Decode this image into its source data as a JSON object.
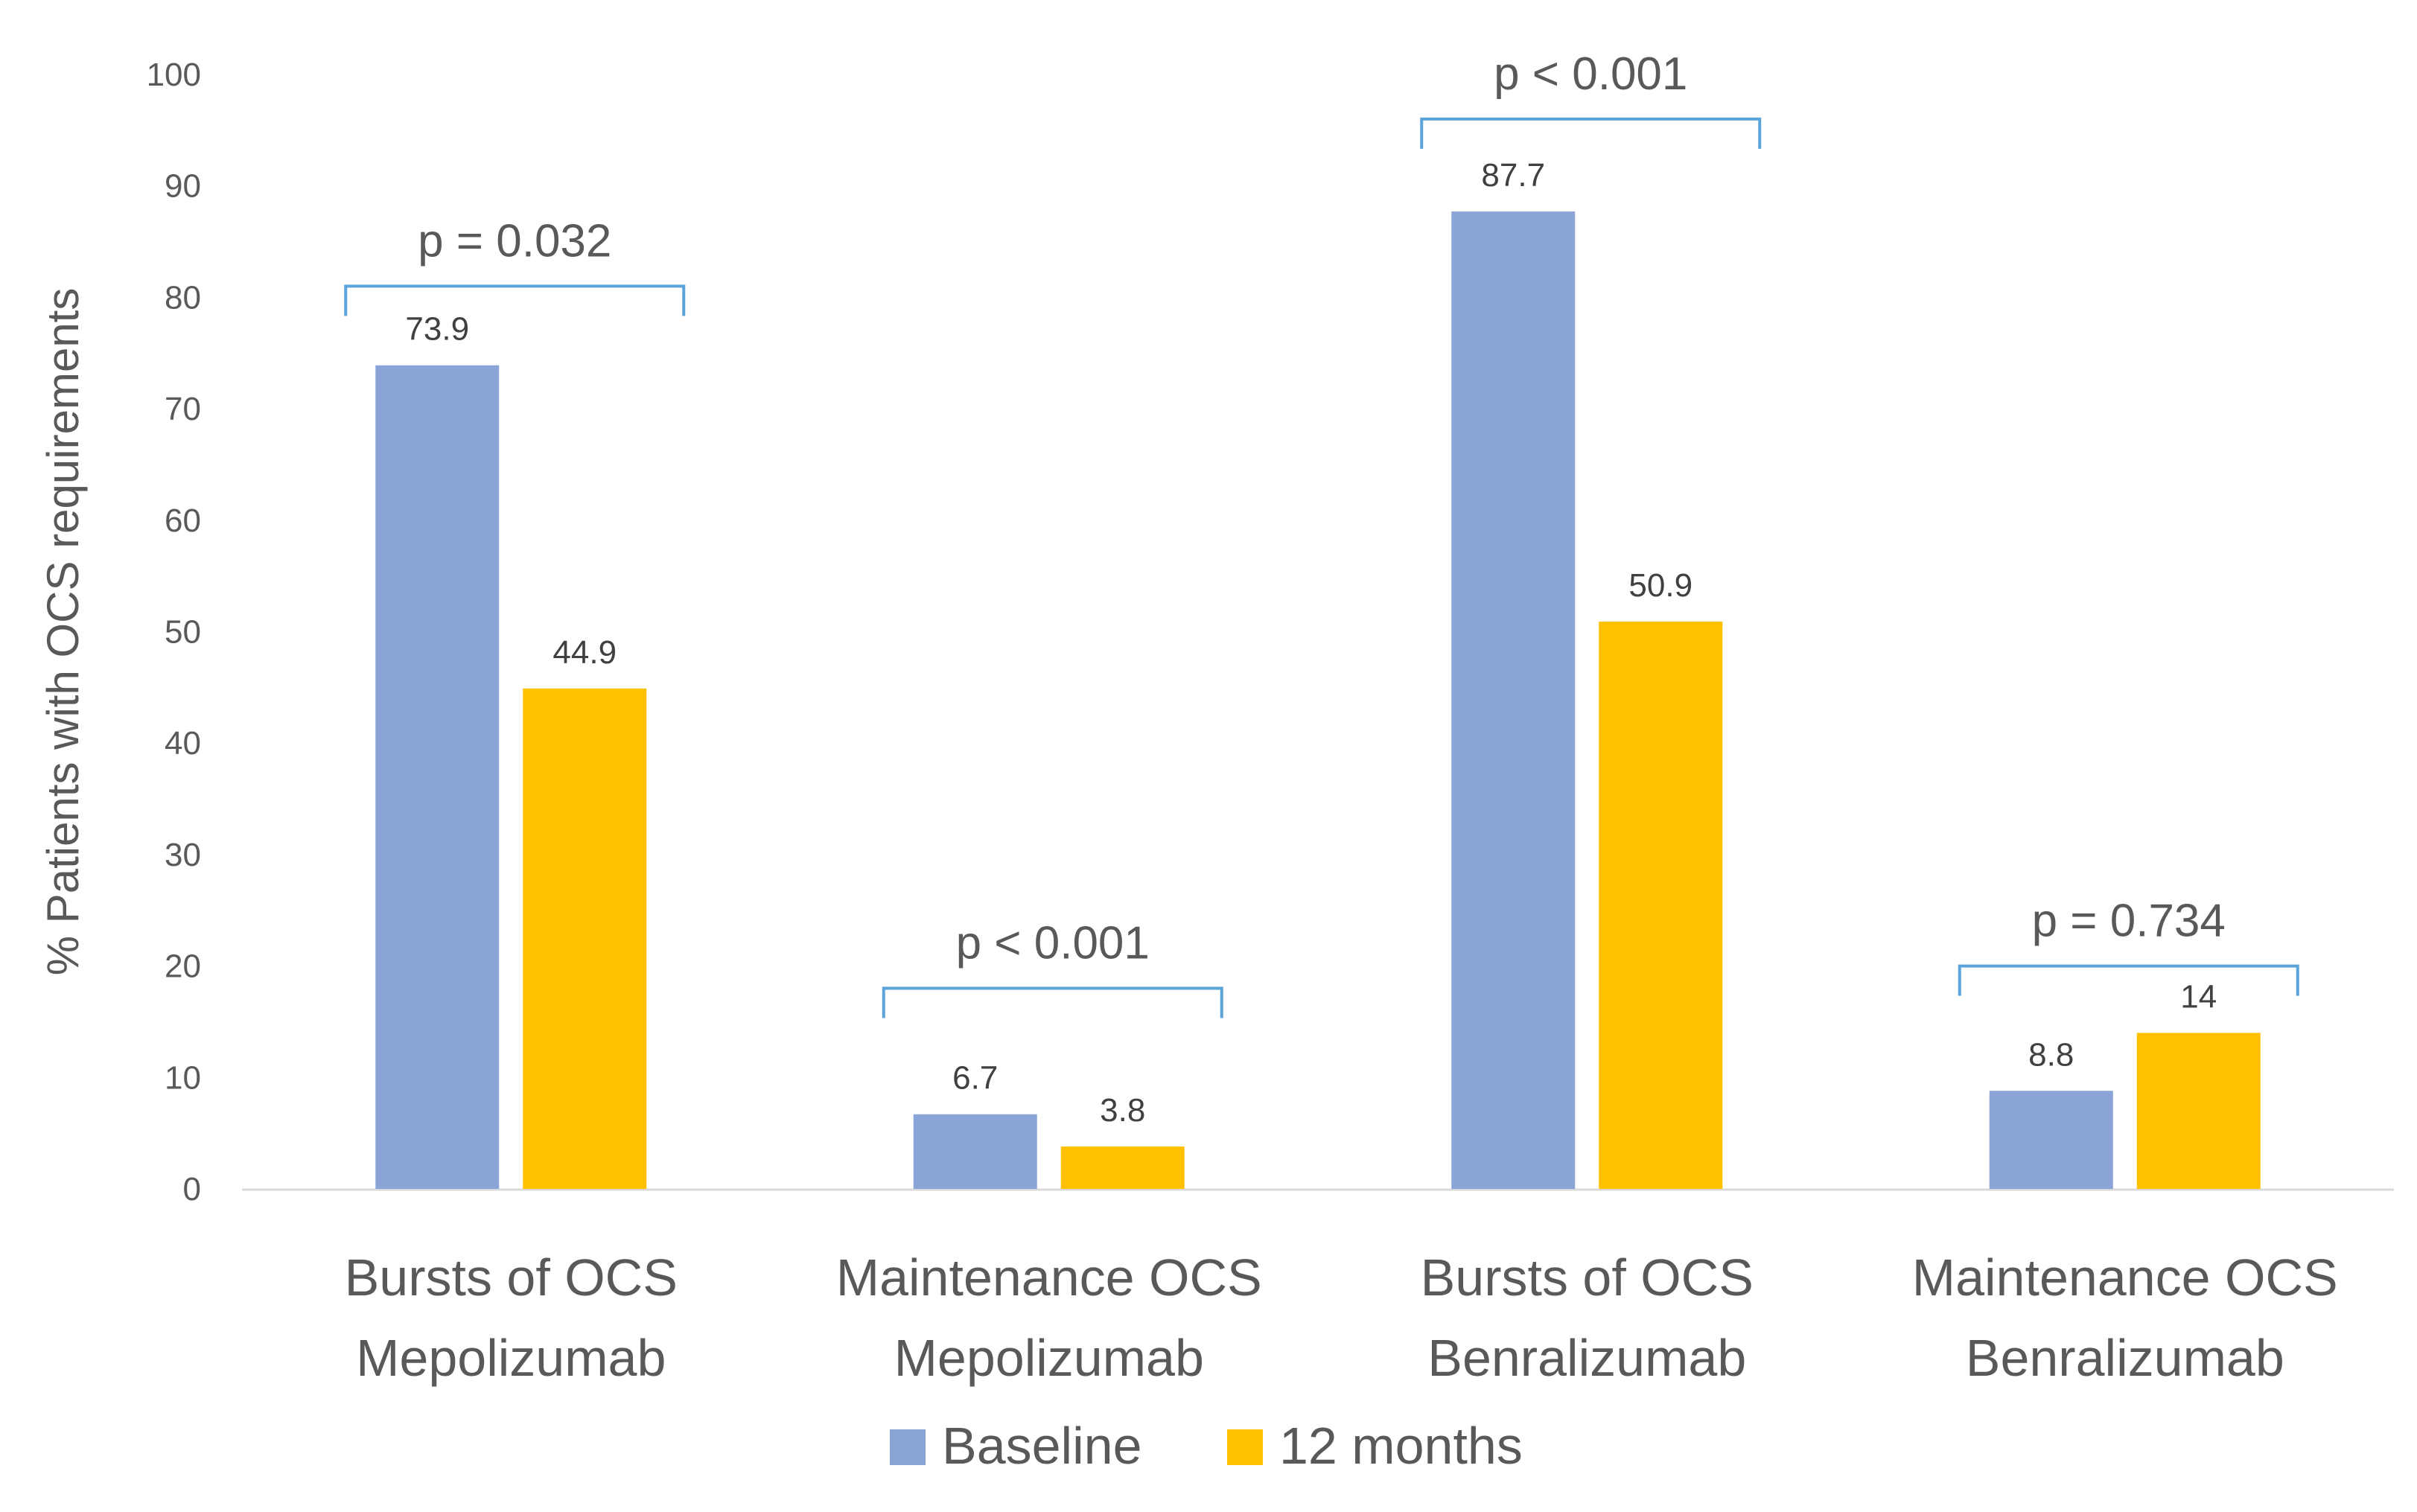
{
  "chart_data": {
    "type": "bar",
    "title": "",
    "xlabel": "",
    "ylabel": "% Patients with OCS requirements",
    "ylim": [
      0,
      100
    ],
    "yticks": [
      0,
      10,
      20,
      30,
      40,
      50,
      60,
      70,
      80,
      90,
      100
    ],
    "grid": false,
    "legend_position": "bottom",
    "categories": [
      [
        "Bursts of OCS",
        "Mepolizumab"
      ],
      [
        "Maintenance OCS",
        "Mepolizumab"
      ],
      [
        "Bursts of OCS",
        "Benralizumab"
      ],
      [
        "Maintenance OCS",
        "Benralizumab"
      ]
    ],
    "series": [
      {
        "name": "Baseline",
        "color": "#8AA4D8",
        "values": [
          73.9,
          6.7,
          87.7,
          8.8
        ],
        "labels": [
          "73.9",
          "6.7",
          "87.7",
          "8.8"
        ]
      },
      {
        "name": "12 months",
        "color": "#FFC000",
        "values": [
          44.9,
          3.8,
          50.9,
          14
        ],
        "labels": [
          "44.9",
          "3.8",
          "50.9",
          "14"
        ]
      }
    ],
    "annotations": [
      {
        "category": 0,
        "text": "p = 0.032",
        "level": 81
      },
      {
        "category": 1,
        "text": "p < 0.001",
        "level": 18
      },
      {
        "category": 2,
        "text": "p < 0.001",
        "level": 96
      },
      {
        "category": 3,
        "text": "p = 0.734",
        "level": 20
      }
    ],
    "colors": {
      "axis": "#D9D9D9",
      "bracket": "#5BA3D9"
    }
  }
}
